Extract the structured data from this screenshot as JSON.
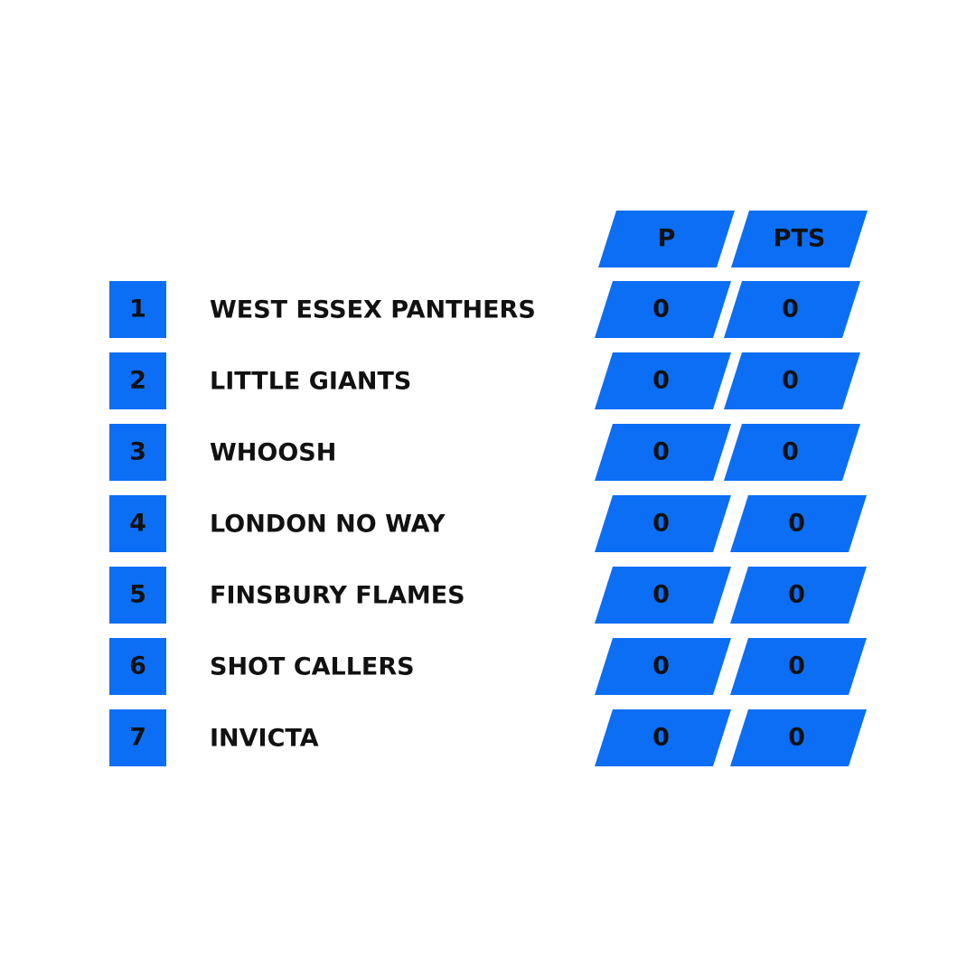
{
  "table": {
    "header": [
      "P",
      "PTS"
    ],
    "rows": [
      [
        1,
        "WEST ESSEX PANTHERS",
        0,
        0
      ],
      [
        2,
        "LITTLE GIANTS",
        0,
        0
      ],
      [
        3,
        "WHOOSH",
        0,
        0
      ],
      [
        4,
        "LONDON NO WAY",
        0,
        0
      ],
      [
        5,
        "FINSBURY FLAMES",
        0,
        0
      ],
      [
        6,
        "SHOT CALLERS",
        0,
        0
      ],
      [
        7,
        "INVICTA",
        0,
        0
      ]
    ]
  }
}
